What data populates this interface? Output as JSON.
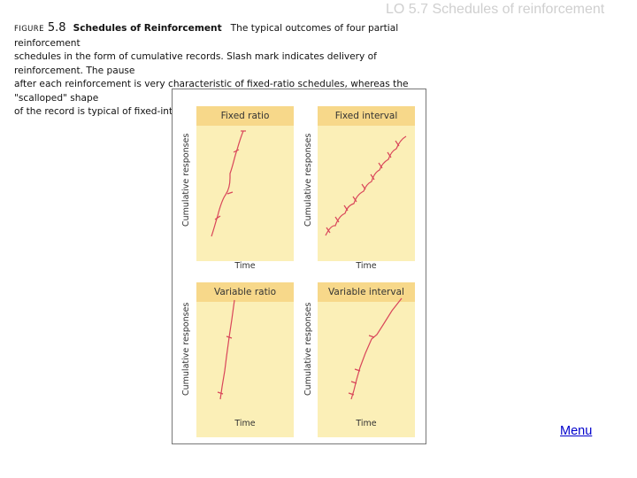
{
  "slide": {
    "title": "LO 5.7 Schedules of reinforcement"
  },
  "caption": {
    "figure_word": "FIGURE",
    "figure_number": "5.8",
    "figure_title": "Schedules of Reinforcement",
    "text_line1": "The typical outcomes of four partial reinforcement",
    "text_line2": "schedules in the form of cumulative records. Slash mark indicates delivery of reinforcement. The pause",
    "text_line3": "after each reinforcement is very characteristic of fixed-ratio schedules, whereas the \"scalloped\" shape",
    "text_line4": "of the record is typical of fixed-interval schedules."
  },
  "chart_data": [
    {
      "type": "line",
      "title": "Fixed ratio",
      "xlabel": "Time",
      "ylabel": "Cumulative responses",
      "color": "#d9465a"
    },
    {
      "type": "line",
      "title": "Fixed interval",
      "xlabel": "Time",
      "ylabel": "Cumulative responses",
      "color": "#d9465a"
    },
    {
      "type": "line",
      "title": "Variable ratio",
      "xlabel": "Time",
      "ylabel": "Cumulative responses",
      "color": "#d9465a"
    },
    {
      "type": "line",
      "title": "Variable interval",
      "xlabel": "Time",
      "ylabel": "Cumulative responses",
      "color": "#d9465a"
    }
  ],
  "nav": {
    "menu_label": "Menu"
  },
  "colors": {
    "panel_bg": "#fbefb7",
    "panel_header": "#f7d88a",
    "curve": "#d9465a",
    "link": "#0000cc"
  }
}
